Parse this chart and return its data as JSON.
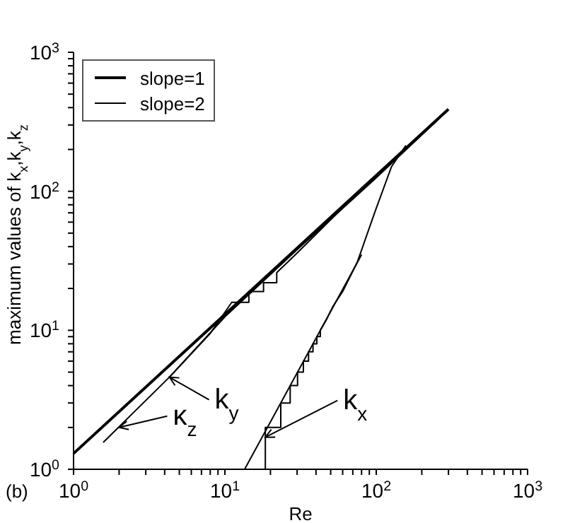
{
  "chart_data": {
    "type": "line",
    "xlabel": "Re",
    "ylabel": "maximum values of k$_{x}$,k$_{y}$,k$_{z}$",
    "log": "xy",
    "grid": false,
    "legend": "top left",
    "marker": "none",
    "line_style": "solid",
    "xlim": [
      1,
      1000
    ],
    "ylim": [
      1,
      1000
    ],
    "xticks": [
      {
        "value": 1,
        "label": "10$^{0}$"
      },
      {
        "value": 2,
        "label": null
      },
      {
        "value": 3,
        "label": null
      },
      {
        "value": 4,
        "label": null
      },
      {
        "value": 5,
        "label": null
      },
      {
        "value": 6,
        "label": null
      },
      {
        "value": 7,
        "label": null
      },
      {
        "value": 8,
        "label": null
      },
      {
        "value": 9,
        "label": null
      },
      {
        "value": 10,
        "label": "10$^{1}$"
      },
      {
        "value": 20,
        "label": null
      },
      {
        "value": 30,
        "label": null
      },
      {
        "value": 40,
        "label": null
      },
      {
        "value": 50,
        "label": null
      },
      {
        "value": 60,
        "label": null
      },
      {
        "value": 70,
        "label": null
      },
      {
        "value": 80,
        "label": null
      },
      {
        "value": 90,
        "label": null
      },
      {
        "value": 100,
        "label": "10$^{2}$"
      },
      {
        "value": 200,
        "label": null
      },
      {
        "value": 300,
        "label": null
      },
      {
        "value": 400,
        "label": null
      },
      {
        "value": 500,
        "label": null
      },
      {
        "value": 600,
        "label": null
      },
      {
        "value": 700,
        "label": null
      },
      {
        "value": 800,
        "label": null
      },
      {
        "value": 900,
        "label": null
      },
      {
        "value": 1000,
        "label": "10$^{3}$"
      }
    ],
    "yticks": [
      {
        "value": 1,
        "label": "10$^{0}$"
      },
      {
        "value": 2,
        "label": null
      },
      {
        "value": 3,
        "label": null
      },
      {
        "value": 4,
        "label": null
      },
      {
        "value": 5,
        "label": null
      },
      {
        "value": 6,
        "label": null
      },
      {
        "value": 7,
        "label": null
      },
      {
        "value": 8,
        "label": null
      },
      {
        "value": 9,
        "label": null
      },
      {
        "value": 10,
        "label": "10$^{1}$"
      },
      {
        "value": 20,
        "label": null
      },
      {
        "value": 30,
        "label": null
      },
      {
        "value": 40,
        "label": null
      },
      {
        "value": 50,
        "label": null
      },
      {
        "value": 60,
        "label": null
      },
      {
        "value": 70,
        "label": null
      },
      {
        "value": 80,
        "label": null
      },
      {
        "value": 90,
        "label": null
      },
      {
        "value": 100,
        "label": "10$^{2}$"
      },
      {
        "value": 200,
        "label": null
      },
      {
        "value": 300,
        "label": null
      },
      {
        "value": 400,
        "label": null
      },
      {
        "value": 500,
        "label": null
      },
      {
        "value": 600,
        "label": null
      },
      {
        "value": 700,
        "label": null
      },
      {
        "value": 800,
        "label": null
      },
      {
        "value": 900,
        "label": null
      },
      {
        "value": 1000,
        "label": "10$^{3}$"
      }
    ],
    "series": [
      {
        "name": "slope=1",
        "color": "#000000",
        "x": [
          1,
          300
        ],
        "values": [
          1.3,
          390
        ]
      },
      {
        "name": "slope=2",
        "color": "#000000",
        "x": [
          13.5,
          80
        ],
        "values": [
          1,
          35
        ]
      },
      {
        "color": "#000000",
        "x": [
          1.57,
          4.3,
          10,
          30,
          100,
          250
        ],
        "values": [
          1.56,
          4.6,
          12.5,
          38,
          125,
          320
        ]
      },
      {
        "color": "#000000",
        "x": [
          4.3,
          8,
          11.1,
          14.4,
          14.4,
          18,
          18,
          22,
          22,
          30,
          60,
          100,
          250
        ],
        "values": [
          4.6,
          9.5,
          15.9,
          15.9,
          19,
          19,
          22,
          22,
          26,
          36,
          76,
          128,
          320
        ]
      },
      {
        "color": "#000000",
        "x": [
          18.5,
          18.5,
          23.4,
          23.4,
          27,
          27,
          30.2,
          30.2,
          33,
          33,
          35.7,
          35.7,
          38.2,
          38.2,
          40.5,
          40.5,
          42.7,
          42.7,
          47,
          52,
          60,
          75,
          98,
          126,
          157
        ],
        "values": [
          1,
          2,
          2,
          3,
          3,
          4,
          4,
          5,
          5,
          6,
          6,
          7,
          7,
          8,
          8,
          9,
          9,
          10,
          12,
          15,
          19,
          31,
          71,
          150,
          214
        ]
      }
    ],
    "annotations": [
      {
        "text": "κ$_{z}$",
        "x": 2,
        "y": 2
      },
      {
        "text": "k$_{y}$",
        "x": 4.3,
        "y": 4.6
      },
      {
        "text": "k$_{x}$",
        "x": 18.5,
        "y": 1.7
      },
      "(b)"
    ]
  }
}
